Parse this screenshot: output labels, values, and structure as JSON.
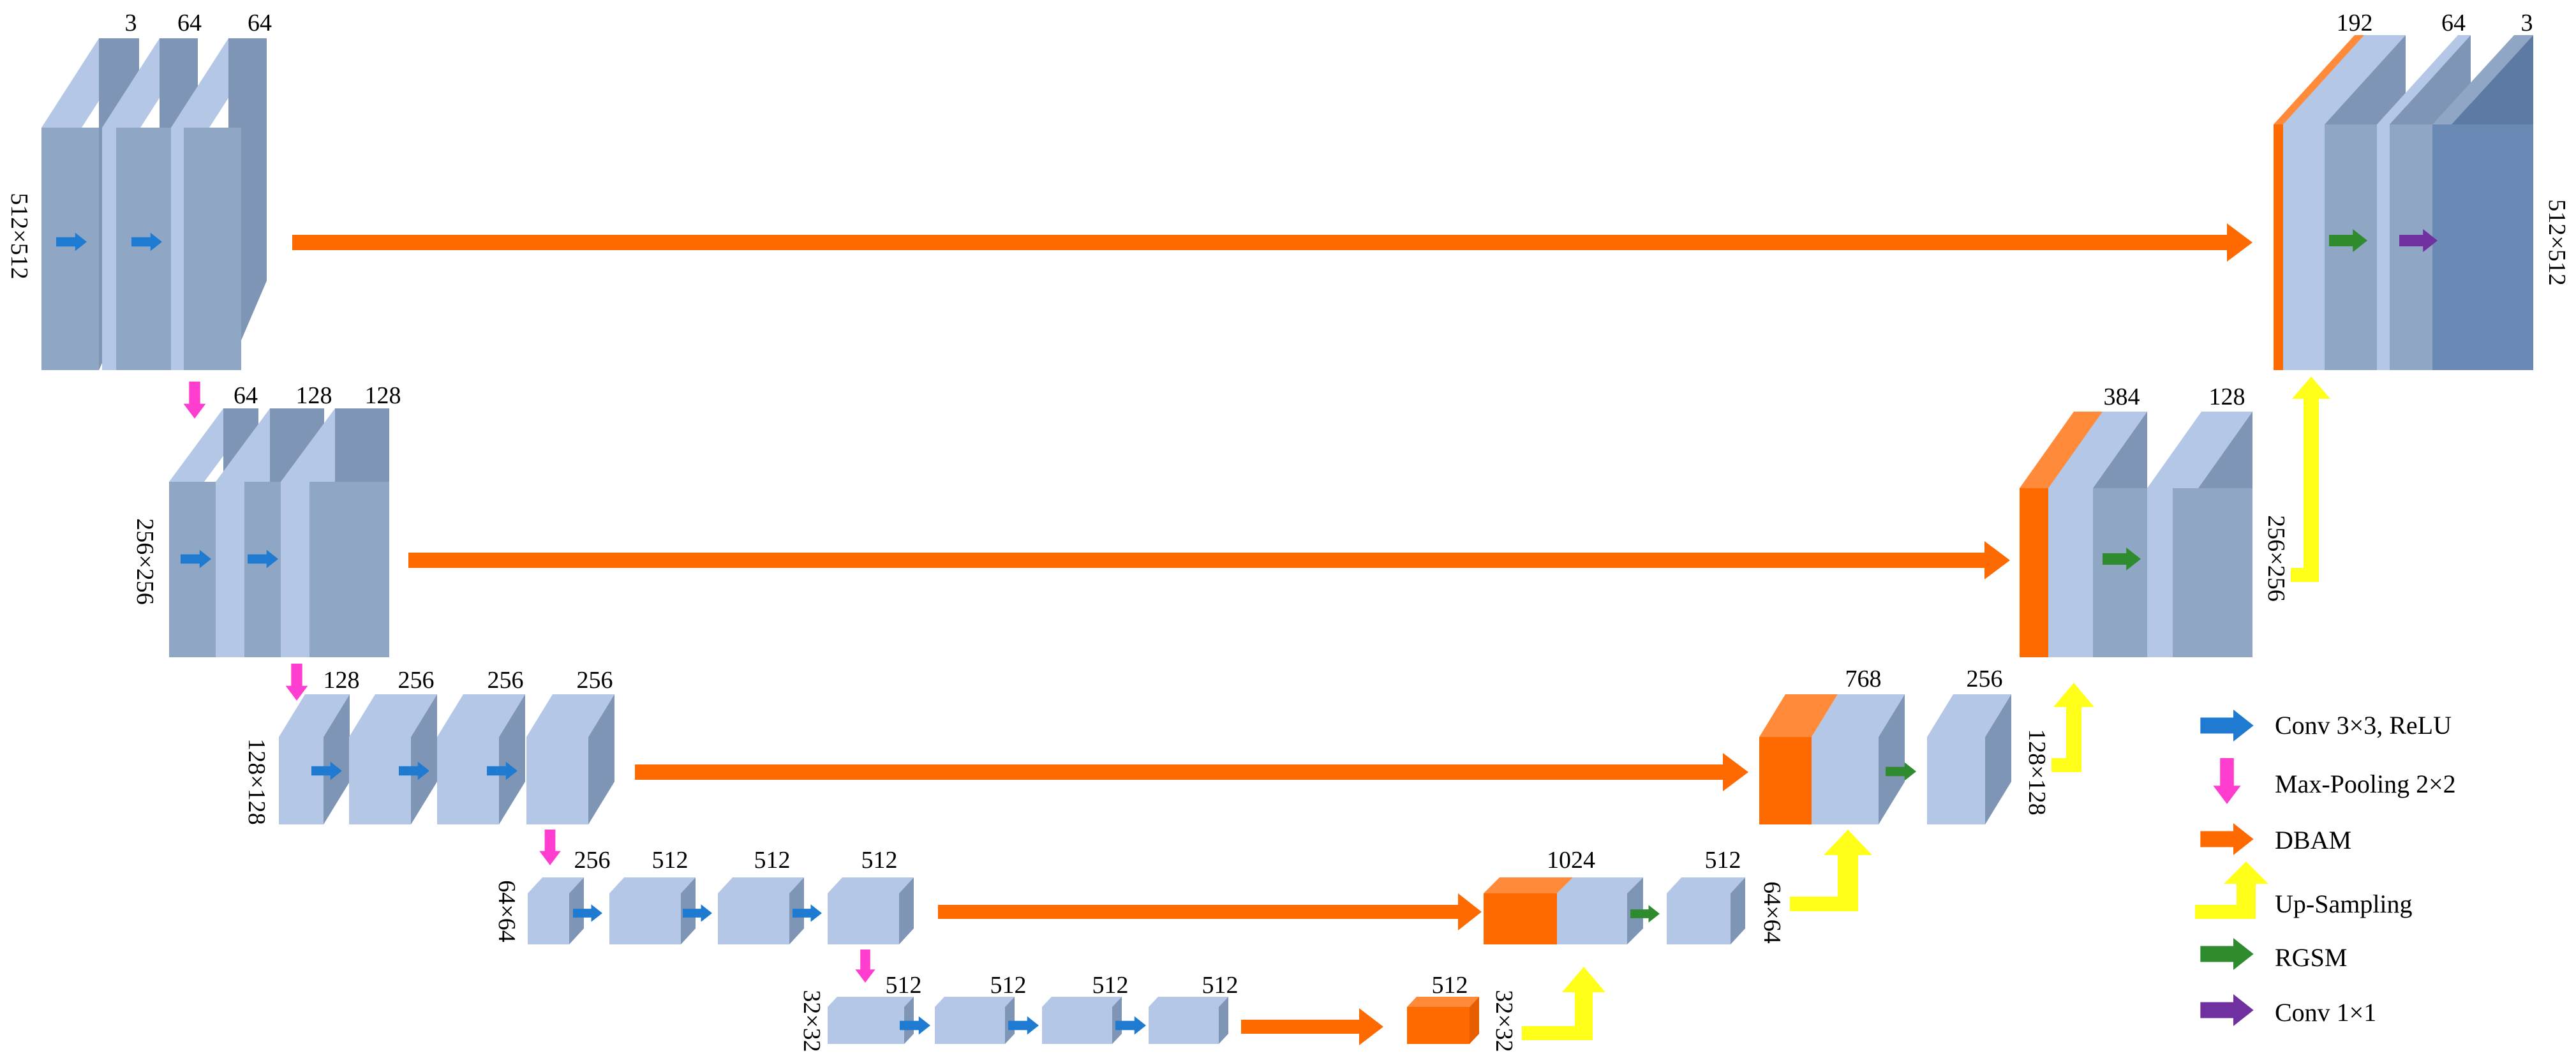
{
  "colors": {
    "block_light": "#b4c7e7",
    "block_mid": "#8fa7c4",
    "block_side": "#7f95b5",
    "block_dark": "#6a8ab5",
    "dbam": "#ff6a00",
    "dbam_light": "#ff8a3a",
    "conv3x3": "#1f7bd1",
    "maxpool": "#ff3ecf",
    "upsample": "#ffff1a",
    "rgsm": "#2e8b2e",
    "conv1x1": "#7030a0"
  },
  "labels": {
    "l1": {
      "size": "512×512",
      "c1": "3",
      "c2": "64",
      "c3": "64"
    },
    "l2": {
      "size": "256×256",
      "c1": "64",
      "c2": "128",
      "c3": "128"
    },
    "l3": {
      "size": "128×128",
      "c1": "128",
      "c2": "256",
      "c3": "256",
      "c4": "256"
    },
    "l4": {
      "size": "64×64",
      "c1": "256",
      "c2": "512",
      "c3": "512",
      "c4": "512"
    },
    "l5": {
      "size": "32×32",
      "c1": "512",
      "c2": "512",
      "c3": "512",
      "c4": "512"
    },
    "bottleneck": {
      "c": "512",
      "size": "32×32"
    },
    "d4": {
      "c1": "1024",
      "c2": "512",
      "size": "64×64"
    },
    "d3": {
      "c1": "768",
      "c2": "256",
      "size": "128×128"
    },
    "d2": {
      "c1": "384",
      "c2": "128",
      "size": "256×256"
    },
    "d1": {
      "c1": "192",
      "c2": "64",
      "c3": "3",
      "size": "512×512"
    }
  },
  "legend": [
    {
      "icon": "conv3x3-arrow-icon",
      "label": "Conv 3×3, ReLU"
    },
    {
      "icon": "maxpool-arrow-icon",
      "label": "Max-Pooling 2×2"
    },
    {
      "icon": "dbam-arrow-icon",
      "label": "DBAM"
    },
    {
      "icon": "upsampling-arrow-icon",
      "label": "Up-Sampling"
    },
    {
      "icon": "rgsm-arrow-icon",
      "label": "RGSM"
    },
    {
      "icon": "conv1x1-arrow-icon",
      "label": "Conv 1×1"
    }
  ]
}
